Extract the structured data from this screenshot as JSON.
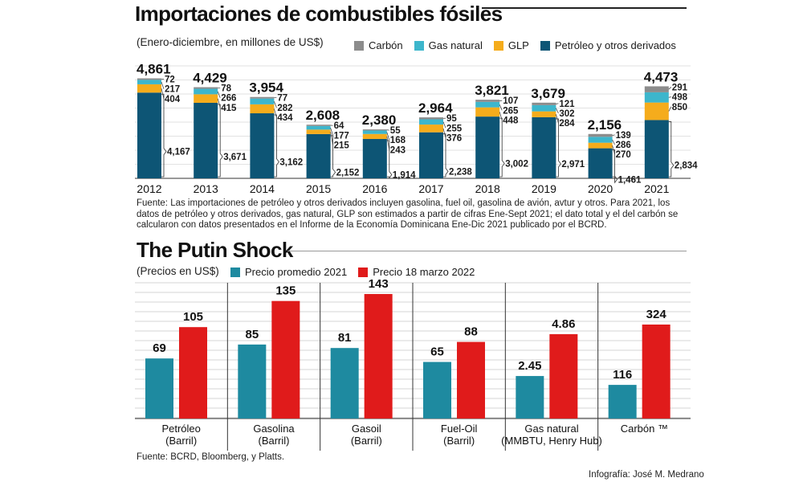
{
  "chart_data": [
    {
      "type": "bar",
      "stacked": true,
      "title": "Importaciones de combustibles fósiles",
      "subtitle": "(Enero-diciembre, en millones de US$)",
      "categories": [
        "2012",
        "2013",
        "2014",
        "2015",
        "2016",
        "2017",
        "2018",
        "2019",
        "2020",
        "2021"
      ],
      "totals": [
        "4,861",
        "4,429",
        "3,954",
        "2,608",
        "2,380",
        "2,964",
        "3,821",
        "3,679",
        "2,156",
        "4,473"
      ],
      "series": [
        {
          "name": "Petróleo y otros derivados",
          "color": "#0d5575",
          "values": [
            4167,
            3671,
            3162,
            2152,
            1914,
            2238,
            3002,
            2971,
            1461,
            2834
          ],
          "labels": [
            "4,167",
            "3,671",
            "3,162",
            "2,152",
            "1,914",
            "2,238",
            "3,002",
            "2,971",
            "1,461",
            "2,834"
          ]
        },
        {
          "name": "GLP",
          "color": "#f5ac1c",
          "values": [
            404,
            415,
            434,
            215,
            243,
            376,
            448,
            284,
            270,
            850
          ],
          "labels": [
            "404",
            "415",
            "434",
            "215",
            "243",
            "376",
            "448",
            "284",
            "270",
            "850"
          ]
        },
        {
          "name": "Gas natural",
          "color": "#3db6cc",
          "values": [
            217,
            266,
            282,
            177,
            168,
            255,
            265,
            302,
            286,
            498
          ],
          "labels": [
            "217",
            "266",
            "282",
            "177",
            "168",
            "255",
            "265",
            "302",
            "286",
            "498"
          ]
        },
        {
          "name": "Carbón",
          "color": "#8c8c8c",
          "values": [
            72,
            78,
            77,
            64,
            55,
            95,
            107,
            121,
            139,
            291
          ],
          "labels": [
            "72",
            "78",
            "77",
            "64",
            "55",
            "95",
            "107",
            "121",
            "139",
            "291"
          ]
        }
      ],
      "legend_order": [
        "Carbón",
        "Gas natural",
        "GLP",
        "Petróleo y otros derivados"
      ],
      "note": "Fuente: Las importaciones de petróleo y otros derivados incluyen gasolina, fuel oil, gasolina de avión, avtur y otros. Para 2021, los datos de petróleo y otros derivados, gas natural, GLP son estimados a partir de cifras Ene-Sept 2021; el dato total y el del carbón se calcularon con datos presentados en el Informe de la Economía Dominicana Ene-Dic 2021 publicado por el BCRD."
    },
    {
      "type": "bar",
      "title": "The Putin Shock",
      "subtitle": "(Precios en US$)",
      "categories": [
        "Petróleo\n(Barril)",
        "Gasolina\n(Barril)",
        "Gasoil\n(Barril)",
        "Fuel-Oil\n(Barril)",
        "Gas natural\n(MMBTU, Henry Hub)",
        "Carbón ™"
      ],
      "series": [
        {
          "name": "Precio promedio 2021",
          "color": "#1e8aa0",
          "values": [
            69,
            85,
            81,
            65,
            2.45,
            116
          ],
          "labels": [
            "69",
            "85",
            "81",
            "65",
            "2.45",
            "116"
          ]
        },
        {
          "name": "Precio 18 marzo 2022",
          "color": "#e01b1b",
          "values": [
            105,
            135,
            143,
            88,
            4.86,
            324
          ],
          "labels": [
            "105",
            "135",
            "143",
            "88",
            "4.86",
            "324"
          ]
        }
      ],
      "note": "Fuente: BCRD, Bloomberg, y Platts.",
      "credit": "Infografía: José M. Medrano"
    }
  ]
}
